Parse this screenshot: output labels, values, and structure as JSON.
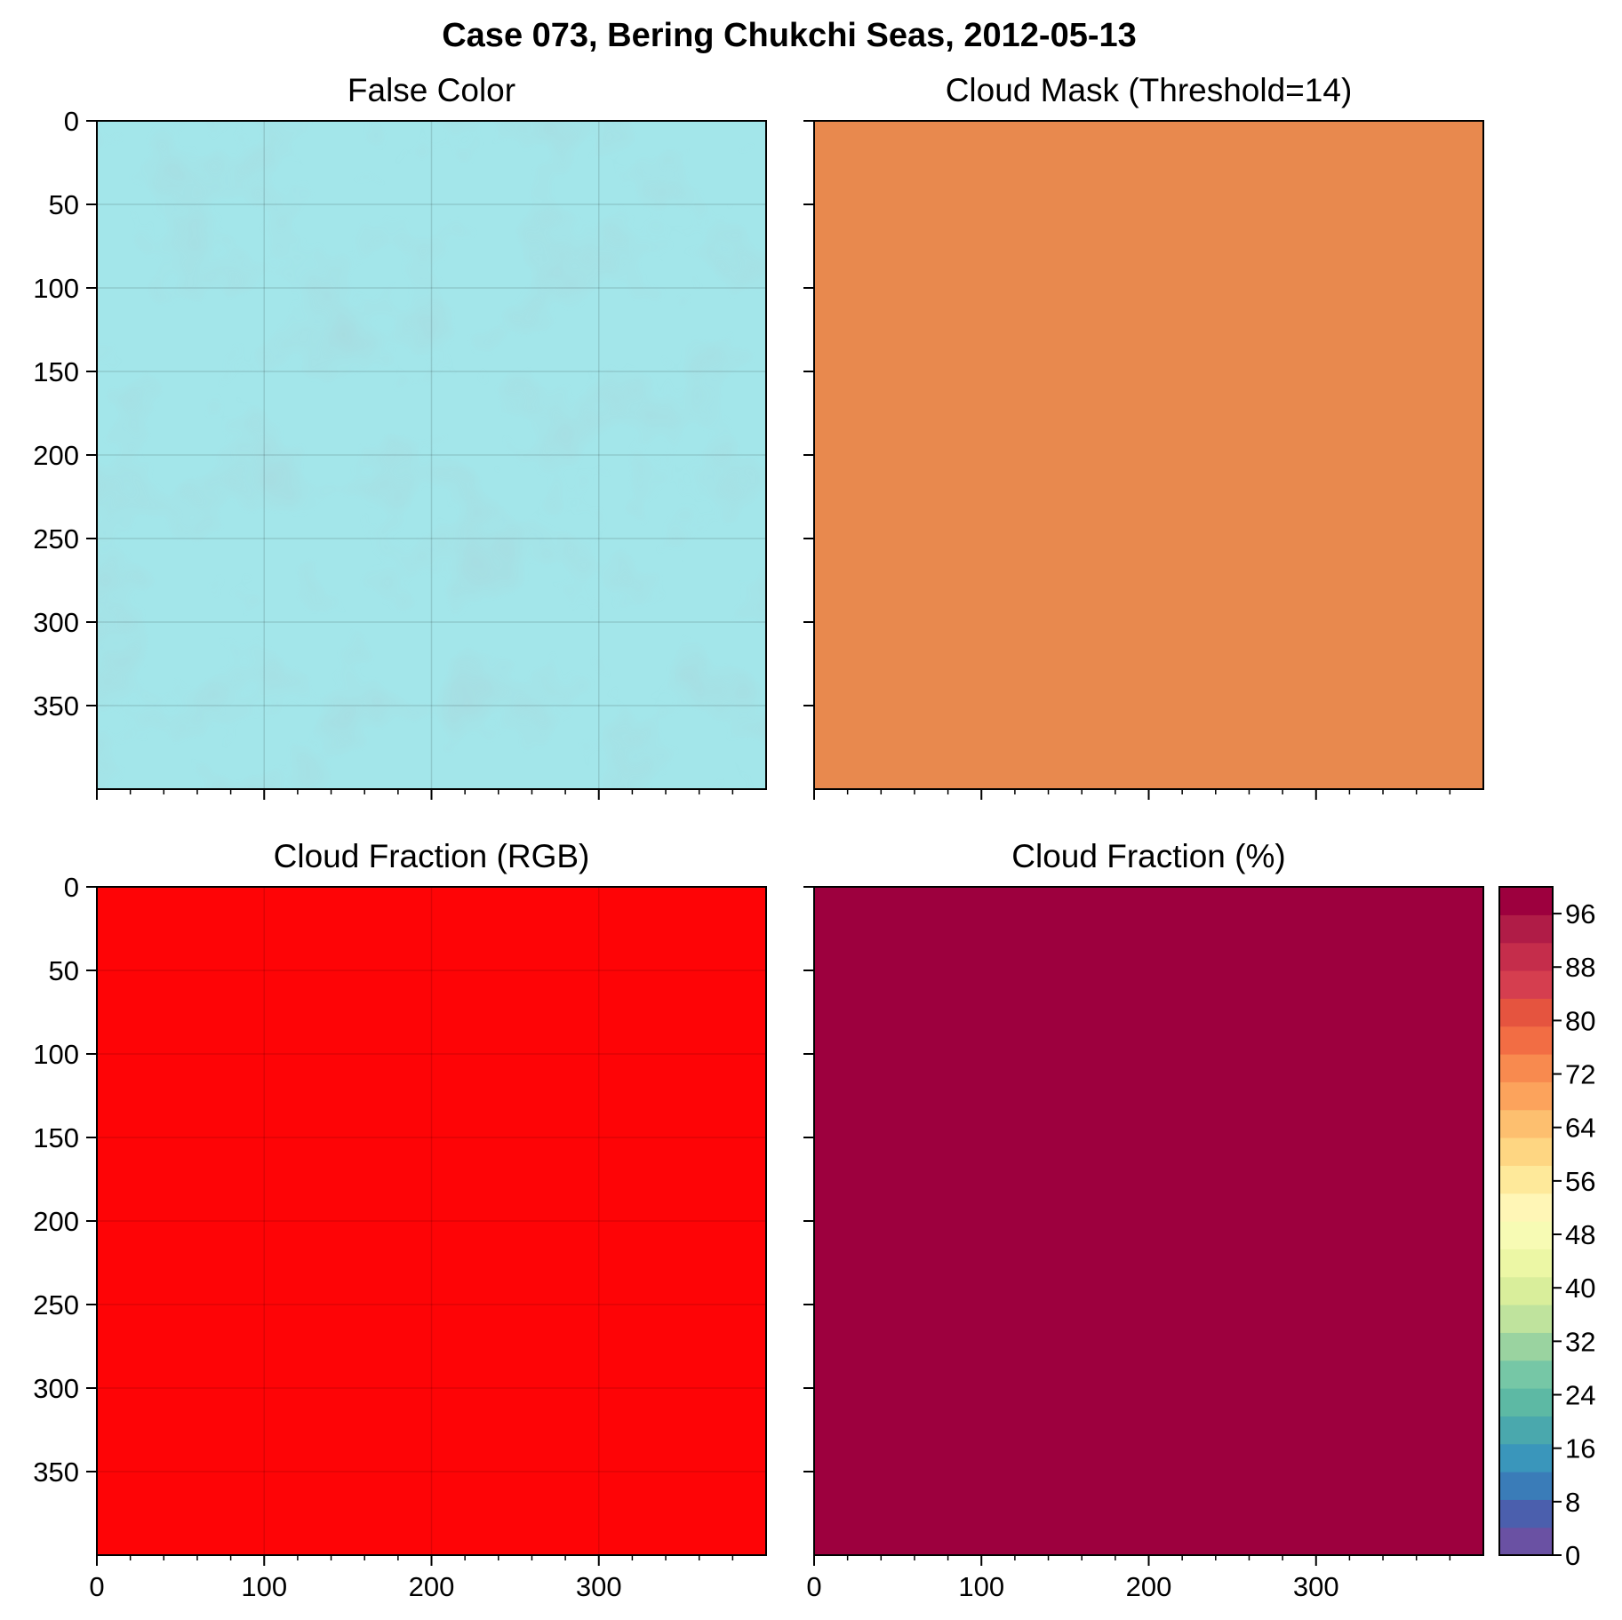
{
  "figure": {
    "title": "Case 073, Bering Chukchi Seas, 2012-05-13"
  },
  "colors": {
    "mask_fill": "#e8894e",
    "cf_rgb_fill": "#fe0406",
    "cf_pct_fill": "#9d003e",
    "false_color_base": "#a3e6ea",
    "colorbar": [
      "#6a51a3",
      "#4b5fad",
      "#3a7cb8",
      "#3a96bb",
      "#4aa8ad",
      "#5db9a4",
      "#76c7a6",
      "#9ad3a0",
      "#bfe39d",
      "#d9ee9b",
      "#ecf7a5",
      "#f7fbb4",
      "#fff6b6",
      "#fee99a",
      "#fed682",
      "#fdbf6f",
      "#fca35c",
      "#f88a4f",
      "#f26d44",
      "#e5543f",
      "#d53e4f",
      "#c52d4b",
      "#b01c47",
      "#9d003e"
    ]
  },
  "chart_data": [
    {
      "type": "heatmap",
      "title": "False Color",
      "xlim": [
        0,
        400
      ],
      "ylim": [
        400,
        0
      ],
      "xticks": [
        0,
        100,
        200,
        300
      ],
      "yticks": [
        0,
        50,
        100,
        150,
        200,
        250,
        300,
        350
      ],
      "xtick_labels_visible": false,
      "ytick_labels_visible": true,
      "grid": true,
      "fill": "#a3e6ea"
    },
    {
      "type": "heatmap",
      "title": "Cloud Mask (Threshold=14)",
      "xlim": [
        0,
        400
      ],
      "ylim": [
        400,
        0
      ],
      "xticks": [
        0,
        100,
        200,
        300
      ],
      "yticks": [
        0,
        50,
        100,
        150,
        200,
        250,
        300,
        350
      ],
      "xtick_labels_visible": false,
      "ytick_labels_visible": false,
      "grid": false,
      "fill": "#e8894e"
    },
    {
      "type": "heatmap",
      "title": "Cloud Fraction (RGB)",
      "xlim": [
        0,
        400
      ],
      "ylim": [
        400,
        0
      ],
      "xticks": [
        0,
        100,
        200,
        300
      ],
      "yticks": [
        0,
        50,
        100,
        150,
        200,
        250,
        300,
        350
      ],
      "xtick_labels_visible": true,
      "ytick_labels_visible": true,
      "grid": true,
      "fill": "#fe0406"
    },
    {
      "type": "heatmap",
      "title": "Cloud Fraction (%)",
      "xlim": [
        0,
        400
      ],
      "ylim": [
        400,
        0
      ],
      "xticks": [
        0,
        100,
        200,
        300
      ],
      "yticks": [
        0,
        50,
        100,
        150,
        200,
        250,
        300,
        350
      ],
      "xtick_labels_visible": true,
      "ytick_labels_visible": false,
      "grid": false,
      "fill": "#9d003e",
      "value": 100,
      "colorbar": {
        "range": [
          0,
          100
        ],
        "ticks": [
          0,
          8,
          16,
          24,
          32,
          40,
          48,
          56,
          64,
          72,
          80,
          88,
          96
        ],
        "levels": 24
      }
    }
  ]
}
